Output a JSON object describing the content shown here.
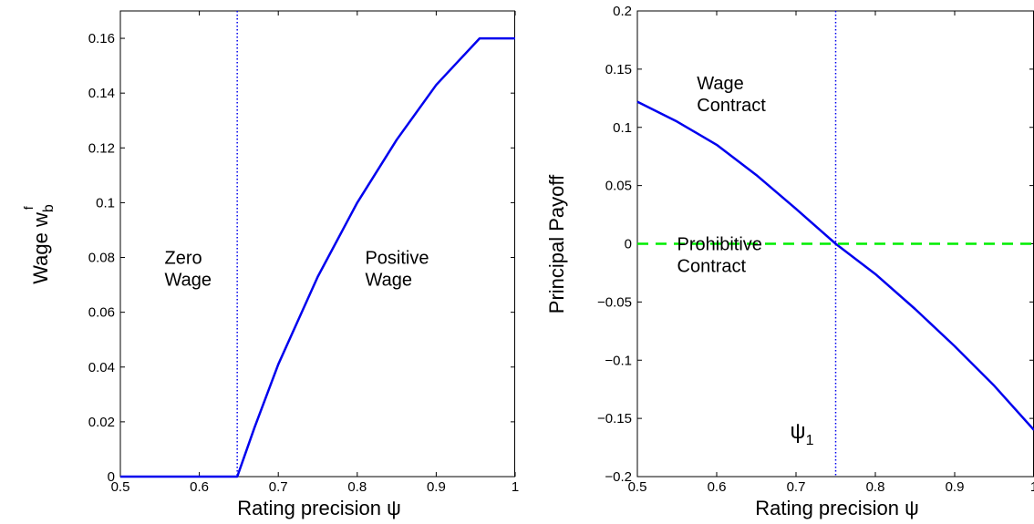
{
  "chart_data": [
    {
      "type": "line",
      "xlabel": "Rating precision ψ",
      "ylabel": "Wage w",
      "ylabel_sup": "f",
      "ylabel_sub": "b",
      "xlim": [
        0.5,
        1.0
      ],
      "ylim": [
        0,
        0.17
      ],
      "xticks": [
        0.5,
        0.6,
        0.7,
        0.8,
        0.9,
        1
      ],
      "xtick_labels": [
        "0.5",
        "0.6",
        "0.7",
        "0.8",
        "0.9",
        "1"
      ],
      "yticks": [
        0,
        0.02,
        0.04,
        0.06,
        0.08,
        0.1,
        0.12,
        0.14,
        0.16
      ],
      "ytick_labels": [
        "0",
        "0.02",
        "0.04",
        "0.06",
        "0.08",
        "0.1",
        "0.12",
        "0.14",
        "0.16"
      ],
      "grid": false,
      "colors": {
        "series": "#0000ee",
        "vline": "#0000ee"
      },
      "vline": {
        "x": 0.648,
        "style": "dotted"
      },
      "annotations": [
        {
          "lines": [
            "Zero",
            "Wage"
          ],
          "x": 0.556,
          "y": 0.08
        },
        {
          "lines": [
            "Positive",
            "Wage"
          ],
          "x": 0.81,
          "y": 0.08
        }
      ],
      "series": [
        {
          "style": "solid",
          "x": [
            0.5,
            0.648,
            0.67,
            0.7,
            0.75,
            0.8,
            0.85,
            0.9,
            0.955,
            1.0
          ],
          "y": [
            0.0,
            0.0,
            0.018,
            0.041,
            0.073,
            0.1,
            0.123,
            0.143,
            0.16,
            0.16
          ]
        }
      ]
    },
    {
      "type": "line",
      "xlabel": "Rating precision ψ",
      "ylabel": "Principal Payoff",
      "xlim": [
        0.5,
        1.0
      ],
      "ylim": [
        -0.2,
        0.2
      ],
      "xticks": [
        0.5,
        0.6,
        0.7,
        0.8,
        0.9,
        1
      ],
      "xtick_labels": [
        "0.5",
        "0.6",
        "0.7",
        "0.8",
        "0.9",
        "1"
      ],
      "yticks": [
        -0.2,
        -0.15,
        -0.1,
        -0.05,
        0,
        0.05,
        0.1,
        0.15,
        0.2
      ],
      "ytick_labels": [
        "−0.2",
        "−0.15",
        "−0.1",
        "−0.05",
        "0",
        "0.05",
        "0.1",
        "0.15",
        "0.2"
      ],
      "grid": false,
      "colors": {
        "series": "#0000ee",
        "dashed": "#00ee00",
        "vline": "#0000ee"
      },
      "vline": {
        "x": 0.75,
        "style": "dotted"
      },
      "vline_label": {
        "text": "ψ",
        "sub": "1",
        "x": 0.727,
        "y": -0.167
      },
      "annotations": [
        {
          "lines": [
            "Wage",
            "Contract"
          ],
          "x": 0.575,
          "y": 0.138
        },
        {
          "lines": [
            "Prohibitive",
            "Contract"
          ],
          "x": 0.55,
          "y": 0.0
        }
      ],
      "series": [
        {
          "style": "solid",
          "x": [
            0.5,
            0.55,
            0.6,
            0.65,
            0.7,
            0.75,
            0.8,
            0.85,
            0.9,
            0.95,
            1.0
          ],
          "y": [
            0.122,
            0.105,
            0.085,
            0.059,
            0.03,
            0.0,
            -0.026,
            -0.056,
            -0.088,
            -0.122,
            -0.16
          ]
        },
        {
          "style": "dashed",
          "x": [
            0.5,
            1.0
          ],
          "y": [
            0.0,
            0.0
          ]
        }
      ]
    }
  ]
}
